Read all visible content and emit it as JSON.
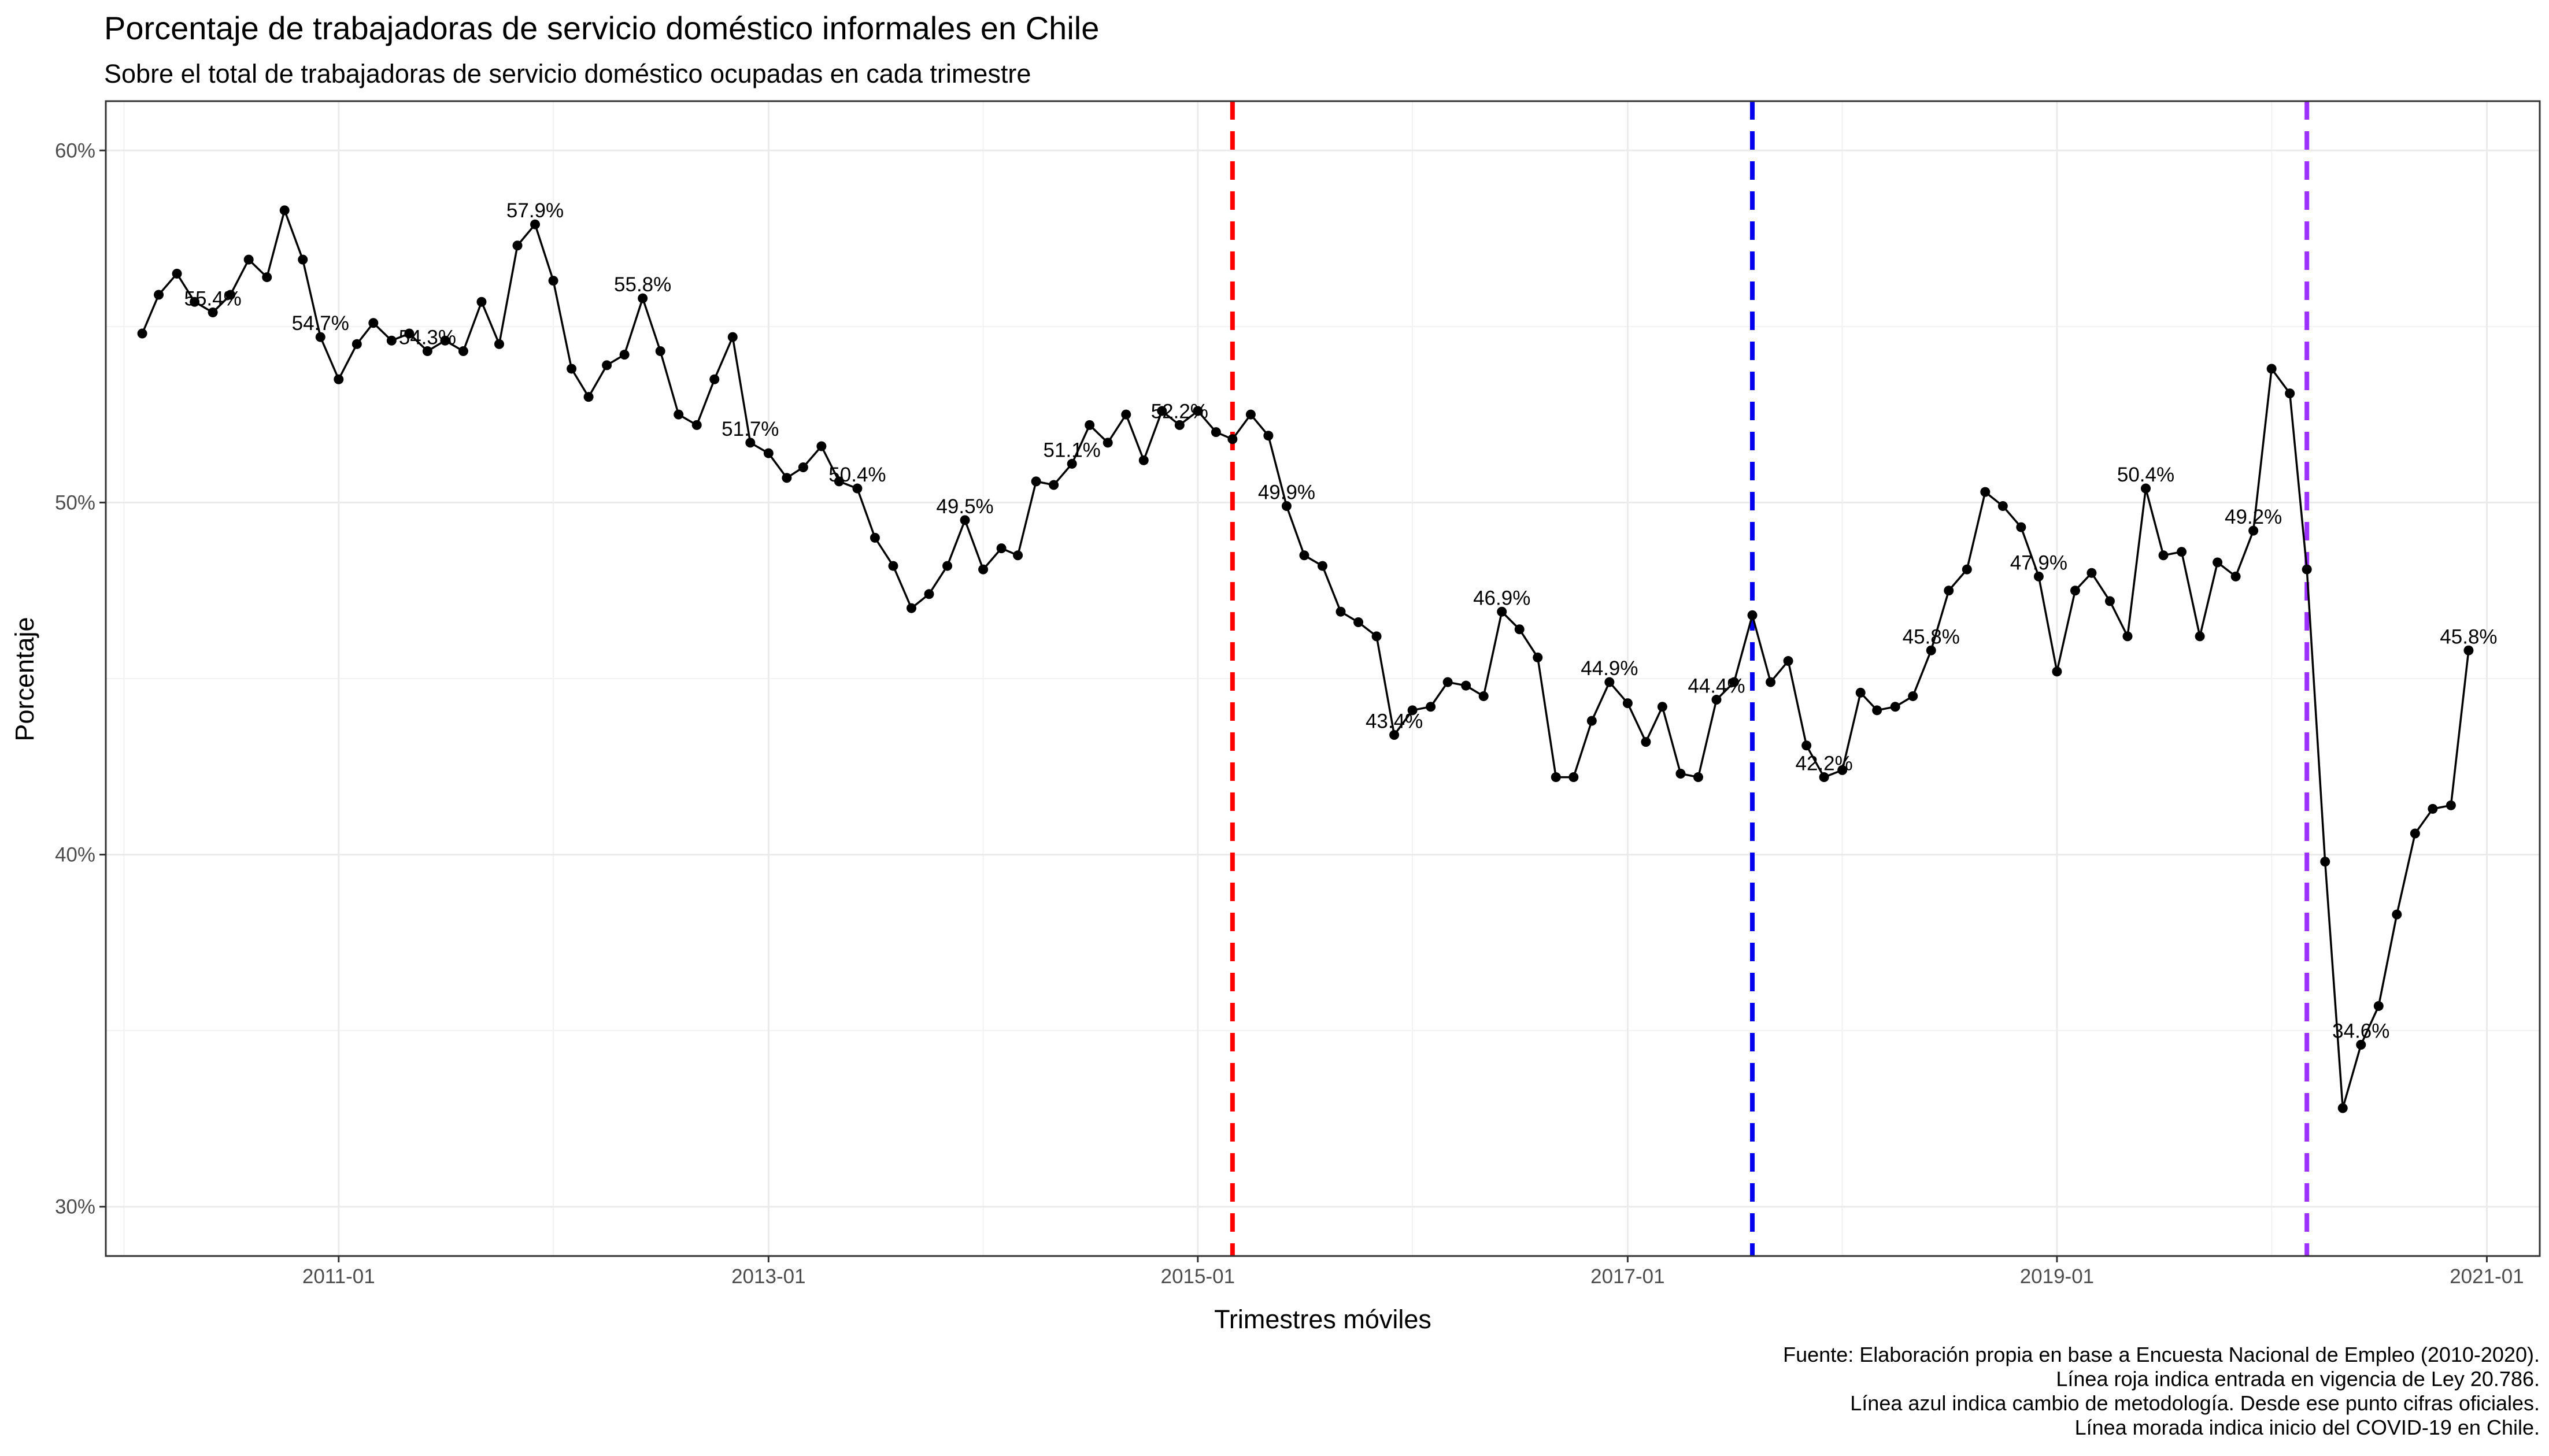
{
  "chart_data": {
    "type": "line",
    "title": "Porcentaje de trabajadoras de servicio doméstico informales en Chile",
    "subtitle": "Sobre el total de trabajadoras de servicio doméstico ocupadas en cada trimestre",
    "xlabel": "Trimestres móviles",
    "ylabel": "Porcentaje",
    "x_range": [
      "2009-12-01",
      "2021-04-01"
    ],
    "ylim": [
      28.6,
      61.4
    ],
    "x_ticks": [
      {
        "date": "2011-01-01",
        "label": "2011-01"
      },
      {
        "date": "2013-01-01",
        "label": "2013-01"
      },
      {
        "date": "2015-01-01",
        "label": "2015-01"
      },
      {
        "date": "2017-01-01",
        "label": "2017-01"
      },
      {
        "date": "2019-01-01",
        "label": "2019-01"
      },
      {
        "date": "2021-01-01",
        "label": "2021-01"
      }
    ],
    "y_ticks": [
      {
        "value": 30,
        "label": "30%"
      },
      {
        "value": 40,
        "label": "40%"
      },
      {
        "value": 50,
        "label": "50%"
      },
      {
        "value": 60,
        "label": "60%"
      }
    ],
    "grid": true,
    "series": [
      {
        "color": "#000000",
        "points": [
          {
            "date": "2010-02-01",
            "value": 54.8
          },
          {
            "date": "2010-03-01",
            "value": 55.9
          },
          {
            "date": "2010-04-01",
            "value": 56.5
          },
          {
            "date": "2010-05-01",
            "value": 55.7
          },
          {
            "date": "2010-06-01",
            "value": 55.4,
            "label": "55.4%"
          },
          {
            "date": "2010-07-01",
            "value": 55.9
          },
          {
            "date": "2010-08-01",
            "value": 56.9
          },
          {
            "date": "2010-09-01",
            "value": 56.4
          },
          {
            "date": "2010-10-01",
            "value": 58.3
          },
          {
            "date": "2010-11-01",
            "value": 56.9
          },
          {
            "date": "2010-12-01",
            "value": 54.7,
            "label": "54.7%"
          },
          {
            "date": "2011-01-01",
            "value": 53.5
          },
          {
            "date": "2011-02-01",
            "value": 54.5
          },
          {
            "date": "2011-03-01",
            "value": 55.1
          },
          {
            "date": "2011-04-01",
            "value": 54.6
          },
          {
            "date": "2011-05-01",
            "value": 54.8
          },
          {
            "date": "2011-06-01",
            "value": 54.3,
            "label": "54.3%"
          },
          {
            "date": "2011-07-01",
            "value": 54.6
          },
          {
            "date": "2011-08-01",
            "value": 54.3
          },
          {
            "date": "2011-09-01",
            "value": 55.7
          },
          {
            "date": "2011-10-01",
            "value": 54.5
          },
          {
            "date": "2011-11-01",
            "value": 57.3
          },
          {
            "date": "2011-12-01",
            "value": 57.9,
            "label": "57.9%"
          },
          {
            "date": "2012-01-01",
            "value": 56.3
          },
          {
            "date": "2012-02-01",
            "value": 53.8
          },
          {
            "date": "2012-03-01",
            "value": 53.0
          },
          {
            "date": "2012-04-01",
            "value": 53.9
          },
          {
            "date": "2012-05-01",
            "value": 54.2
          },
          {
            "date": "2012-06-01",
            "value": 55.8,
            "label": "55.8%"
          },
          {
            "date": "2012-07-01",
            "value": 54.3
          },
          {
            "date": "2012-08-01",
            "value": 52.5
          },
          {
            "date": "2012-09-01",
            "value": 52.2
          },
          {
            "date": "2012-10-01",
            "value": 53.5
          },
          {
            "date": "2012-11-01",
            "value": 54.7
          },
          {
            "date": "2012-12-01",
            "value": 51.7,
            "label": "51.7%"
          },
          {
            "date": "2013-01-01",
            "value": 51.4
          },
          {
            "date": "2013-02-01",
            "value": 50.7
          },
          {
            "date": "2013-03-01",
            "value": 51.0
          },
          {
            "date": "2013-04-01",
            "value": 51.6
          },
          {
            "date": "2013-05-01",
            "value": 50.6
          },
          {
            "date": "2013-06-01",
            "value": 50.4,
            "label": "50.4%"
          },
          {
            "date": "2013-07-01",
            "value": 49.0
          },
          {
            "date": "2013-08-01",
            "value": 48.2
          },
          {
            "date": "2013-09-01",
            "value": 47.0
          },
          {
            "date": "2013-10-01",
            "value": 47.4
          },
          {
            "date": "2013-11-01",
            "value": 48.2
          },
          {
            "date": "2013-12-01",
            "value": 49.5,
            "label": "49.5%"
          },
          {
            "date": "2014-01-01",
            "value": 48.1
          },
          {
            "date": "2014-02-01",
            "value": 48.7
          },
          {
            "date": "2014-03-01",
            "value": 48.5
          },
          {
            "date": "2014-04-01",
            "value": 50.6
          },
          {
            "date": "2014-05-01",
            "value": 50.5
          },
          {
            "date": "2014-06-01",
            "value": 51.1,
            "label": "51.1%"
          },
          {
            "date": "2014-07-01",
            "value": 52.2
          },
          {
            "date": "2014-08-01",
            "value": 51.7
          },
          {
            "date": "2014-09-01",
            "value": 52.5
          },
          {
            "date": "2014-10-01",
            "value": 51.2
          },
          {
            "date": "2014-11-01",
            "value": 52.6
          },
          {
            "date": "2014-12-01",
            "value": 52.2,
            "label": "52.2%"
          },
          {
            "date": "2015-01-01",
            "value": 52.6
          },
          {
            "date": "2015-02-01",
            "value": 52.0
          },
          {
            "date": "2015-03-01",
            "value": 51.8
          },
          {
            "date": "2015-04-01",
            "value": 52.5
          },
          {
            "date": "2015-05-01",
            "value": 51.9
          },
          {
            "date": "2015-06-01",
            "value": 49.9,
            "label": "49.9%"
          },
          {
            "date": "2015-07-01",
            "value": 48.5
          },
          {
            "date": "2015-08-01",
            "value": 48.2
          },
          {
            "date": "2015-09-01",
            "value": 46.9
          },
          {
            "date": "2015-10-01",
            "value": 46.6
          },
          {
            "date": "2015-11-01",
            "value": 46.2
          },
          {
            "date": "2015-12-01",
            "value": 43.4,
            "label": "43.4%"
          },
          {
            "date": "2016-01-01",
            "value": 44.1
          },
          {
            "date": "2016-02-01",
            "value": 44.2
          },
          {
            "date": "2016-03-01",
            "value": 44.9
          },
          {
            "date": "2016-04-01",
            "value": 44.8
          },
          {
            "date": "2016-05-01",
            "value": 44.5
          },
          {
            "date": "2016-06-01",
            "value": 46.9,
            "label": "46.9%"
          },
          {
            "date": "2016-07-01",
            "value": 46.4
          },
          {
            "date": "2016-08-01",
            "value": 45.6
          },
          {
            "date": "2016-09-01",
            "value": 42.2
          },
          {
            "date": "2016-10-01",
            "value": 42.2
          },
          {
            "date": "2016-11-01",
            "value": 43.8
          },
          {
            "date": "2016-12-01",
            "value": 44.9,
            "label": "44.9%"
          },
          {
            "date": "2017-01-01",
            "value": 44.3
          },
          {
            "date": "2017-02-01",
            "value": 43.2
          },
          {
            "date": "2017-03-01",
            "value": 44.2
          },
          {
            "date": "2017-04-01",
            "value": 42.3
          },
          {
            "date": "2017-05-01",
            "value": 42.2
          },
          {
            "date": "2017-06-01",
            "value": 44.4,
            "label": "44.4%"
          },
          {
            "date": "2017-07-01",
            "value": 44.9
          },
          {
            "date": "2017-08-01",
            "value": 46.8
          },
          {
            "date": "2017-09-01",
            "value": 44.9
          },
          {
            "date": "2017-10-01",
            "value": 45.5
          },
          {
            "date": "2017-11-01",
            "value": 43.1
          },
          {
            "date": "2017-12-01",
            "value": 42.2,
            "label": "42.2%"
          },
          {
            "date": "2018-01-01",
            "value": 42.4
          },
          {
            "date": "2018-02-01",
            "value": 44.6
          },
          {
            "date": "2018-03-01",
            "value": 44.1
          },
          {
            "date": "2018-04-01",
            "value": 44.2
          },
          {
            "date": "2018-05-01",
            "value": 44.5
          },
          {
            "date": "2018-06-01",
            "value": 45.8,
            "label": "45.8%"
          },
          {
            "date": "2018-07-01",
            "value": 47.5
          },
          {
            "date": "2018-08-01",
            "value": 48.1
          },
          {
            "date": "2018-09-01",
            "value": 50.3
          },
          {
            "date": "2018-10-01",
            "value": 49.9
          },
          {
            "date": "2018-11-01",
            "value": 49.3
          },
          {
            "date": "2018-12-01",
            "value": 47.9,
            "label": "47.9%"
          },
          {
            "date": "2019-01-01",
            "value": 45.2
          },
          {
            "date": "2019-02-01",
            "value": 47.5
          },
          {
            "date": "2019-03-01",
            "value": 48.0
          },
          {
            "date": "2019-04-01",
            "value": 47.2
          },
          {
            "date": "2019-05-01",
            "value": 46.2
          },
          {
            "date": "2019-06-01",
            "value": 50.4,
            "label": "50.4%"
          },
          {
            "date": "2019-07-01",
            "value": 48.5
          },
          {
            "date": "2019-08-01",
            "value": 48.6
          },
          {
            "date": "2019-09-01",
            "value": 46.2
          },
          {
            "date": "2019-10-01",
            "value": 48.3
          },
          {
            "date": "2019-11-01",
            "value": 47.9
          },
          {
            "date": "2019-12-01",
            "value": 49.2,
            "label": "49.2%"
          },
          {
            "date": "2020-01-01",
            "value": 53.8
          },
          {
            "date": "2020-02-01",
            "value": 53.1
          },
          {
            "date": "2020-03-01",
            "value": 48.1
          },
          {
            "date": "2020-04-01",
            "value": 39.8
          },
          {
            "date": "2020-05-01",
            "value": 32.8
          },
          {
            "date": "2020-06-01",
            "value": 34.6,
            "label": "34.6%"
          },
          {
            "date": "2020-07-01",
            "value": 35.7
          },
          {
            "date": "2020-08-01",
            "value": 38.3
          },
          {
            "date": "2020-09-01",
            "value": 40.6
          },
          {
            "date": "2020-10-01",
            "value": 41.3
          },
          {
            "date": "2020-11-01",
            "value": 41.4
          },
          {
            "date": "2020-12-01",
            "value": 45.8,
            "label": "45.8%"
          }
        ]
      }
    ],
    "vertical_lines": [
      {
        "date": "2015-03-01",
        "color": "#ff0000"
      },
      {
        "date": "2017-08-01",
        "color": "#0000ee"
      },
      {
        "date": "2020-03-01",
        "color": "#9b30ff"
      }
    ],
    "caption": [
      "Fuente: Elaboración propia en base a Encuesta Nacional de Empleo (2010-2020).",
      "Línea roja indica entrada en vigencia de Ley 20.786.",
      "Línea azul indica cambio de metodología. Desde ese punto cifras oficiales.",
      "Línea morada indica inicio del COVID-19 en Chile."
    ]
  }
}
